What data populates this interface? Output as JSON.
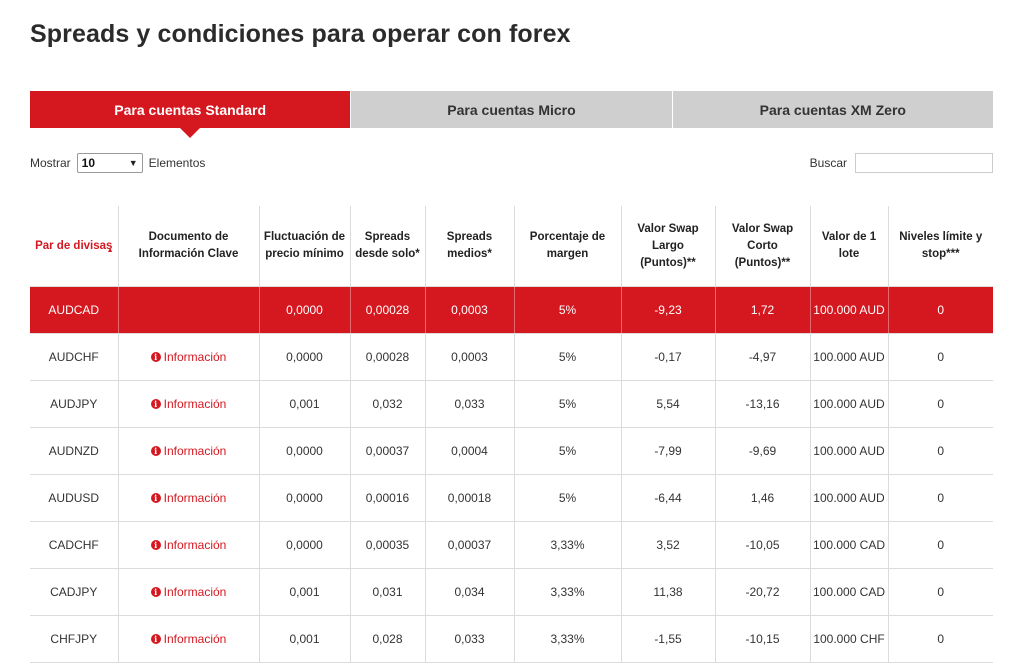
{
  "page": {
    "title": "Spreads y condiciones para operar con forex"
  },
  "tabs": [
    {
      "label": "Para cuentas Standard",
      "active": true
    },
    {
      "label": "Para cuentas Micro",
      "active": false
    },
    {
      "label": "Para cuentas XM Zero",
      "active": false
    }
  ],
  "controls": {
    "show_label": "Mostrar",
    "page_size_value": "10",
    "elements_label": "Elementos",
    "search_label": "Buscar",
    "search_value": ""
  },
  "table": {
    "headers": [
      "Par de divisas",
      "Documento de Información Clave",
      "Fluctuación de precio mínimo",
      "Spreads desde solo*",
      "Spreads medios*",
      "Porcentaje de margen",
      "Valor Swap Largo (Puntos)**",
      "Valor Swap Corto (Puntos)**",
      "Valor de 1 lote",
      "Niveles límite y stop***"
    ],
    "info_label": "Información",
    "rows": [
      {
        "pair": "AUDCAD",
        "doc": "",
        "min_fluct": "0,0000",
        "spread_from": "0,00028",
        "spread_avg": "0,0003",
        "margin": "5%",
        "swap_long": "-9,23",
        "swap_short": "1,72",
        "lot_value": "100.000 AUD",
        "levels": "0",
        "highlight": true
      },
      {
        "pair": "AUDCHF",
        "doc": "Información",
        "min_fluct": "0,0000",
        "spread_from": "0,00028",
        "spread_avg": "0,0003",
        "margin": "5%",
        "swap_long": "-0,17",
        "swap_short": "-4,97",
        "lot_value": "100.000 AUD",
        "levels": "0",
        "highlight": false
      },
      {
        "pair": "AUDJPY",
        "doc": "Información",
        "min_fluct": "0,001",
        "spread_from": "0,032",
        "spread_avg": "0,033",
        "margin": "5%",
        "swap_long": "5,54",
        "swap_short": "-13,16",
        "lot_value": "100.000 AUD",
        "levels": "0",
        "highlight": false
      },
      {
        "pair": "AUDNZD",
        "doc": "Información",
        "min_fluct": "0,0000",
        "spread_from": "0,00037",
        "spread_avg": "0,0004",
        "margin": "5%",
        "swap_long": "-7,99",
        "swap_short": "-9,69",
        "lot_value": "100.000 AUD",
        "levels": "0",
        "highlight": false
      },
      {
        "pair": "AUDUSD",
        "doc": "Información",
        "min_fluct": "0,0000",
        "spread_from": "0,00016",
        "spread_avg": "0,00018",
        "margin": "5%",
        "swap_long": "-6,44",
        "swap_short": "1,46",
        "lot_value": "100.000 AUD",
        "levels": "0",
        "highlight": false
      },
      {
        "pair": "CADCHF",
        "doc": "Información",
        "min_fluct": "0,0000",
        "spread_from": "0,00035",
        "spread_avg": "0,00037",
        "margin": "3,33%",
        "swap_long": "3,52",
        "swap_short": "-10,05",
        "lot_value": "100.000 CAD",
        "levels": "0",
        "highlight": false
      },
      {
        "pair": "CADJPY",
        "doc": "Información",
        "min_fluct": "0,001",
        "spread_from": "0,031",
        "spread_avg": "0,034",
        "margin": "3,33%",
        "swap_long": "11,38",
        "swap_short": "-20,72",
        "lot_value": "100.000 CAD",
        "levels": "0",
        "highlight": false
      },
      {
        "pair": "CHFJPY",
        "doc": "Información",
        "min_fluct": "0,001",
        "spread_from": "0,028",
        "spread_avg": "0,033",
        "margin": "3,33%",
        "swap_long": "-1,55",
        "swap_short": "-10,15",
        "lot_value": "100.000 CHF",
        "levels": "0",
        "highlight": false
      }
    ]
  },
  "colors": {
    "accent": "#d51820",
    "tab_inactive": "#cfcfcf",
    "border": "#dcdcdc"
  },
  "icons": {
    "info": "info-circle-icon",
    "sort": "sort-asc-icon",
    "select": "chevron-down-icon"
  }
}
